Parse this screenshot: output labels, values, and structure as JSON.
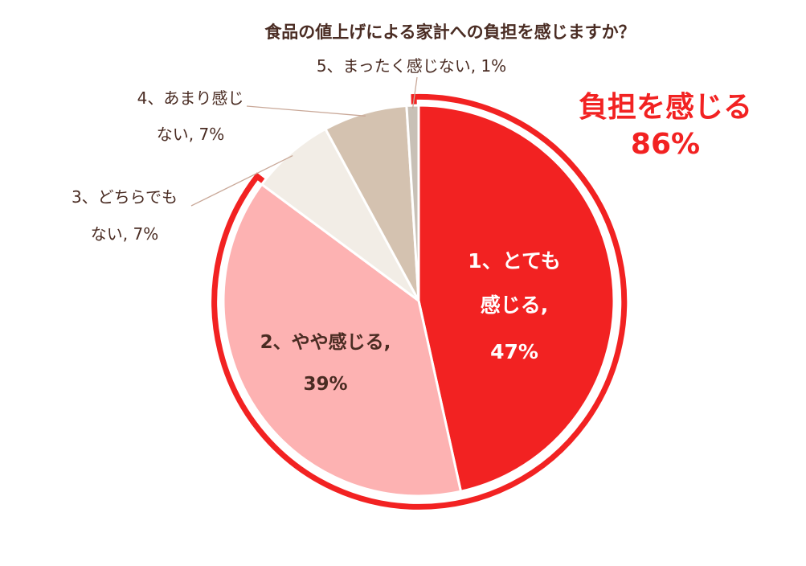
{
  "chart_data": {
    "type": "pie",
    "title": "食品の値上げによる家計への負担を感じますか？",
    "slices": [
      {
        "label_lines": [
          "1、とても",
          "感じる,",
          "47%"
        ],
        "value": 47,
        "color": "#f22222"
      },
      {
        "label_lines": [
          "2、やや感じる,",
          "39%"
        ],
        "value": 39,
        "color": "#fdb2b2"
      },
      {
        "label_lines": [
          "3、どちらでも",
          "ない, 7%"
        ],
        "value": 7,
        "color": "#f2ede6"
      },
      {
        "label_lines": [
          "4、あまり感じ",
          "ない, 7%"
        ],
        "value": 7,
        "color": "#d4c2b0"
      },
      {
        "label_lines": [
          "5、まったく感じない, 1%"
        ],
        "value": 1,
        "color": "#c8c0b6"
      }
    ],
    "callout": {
      "lines": [
        "負担を感じる",
        "86%"
      ],
      "color": "#f22222"
    },
    "highlight_color": "#f22222"
  }
}
